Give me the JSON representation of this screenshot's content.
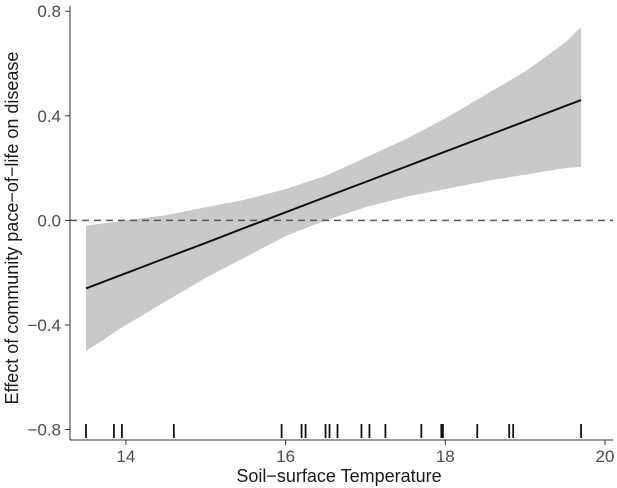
{
  "chart_data": {
    "type": "line",
    "title": "",
    "xlabel": "Soil−surface Temperature",
    "ylabel": "Effect of community pace−of−life on disease",
    "xlim": [
      13.3,
      20.1
    ],
    "ylim": [
      -0.84,
      0.82
    ],
    "x_ticks": [
      14,
      16,
      18,
      20
    ],
    "x_tick_labels": [
      "14",
      "16",
      "18",
      "20"
    ],
    "y_ticks": [
      0.8,
      0.4,
      0.0,
      -0.4,
      -0.8
    ],
    "y_tick_labels": [
      "0.8",
      "0.4",
      "0.0",
      "−0.4",
      "−0.8"
    ],
    "grid": false,
    "reference_line": {
      "y": 0.0,
      "style": "dashed",
      "color": "#555555"
    },
    "line_color": "#111111",
    "band_color": "#c8cac8",
    "series": [
      {
        "x": [
          13.5,
          14.0,
          14.5,
          15.0,
          15.5,
          16.0,
          16.5,
          17.0,
          17.5,
          18.0,
          18.5,
          19.0,
          19.5,
          19.7
        ],
        "y": [
          -0.26,
          -0.202,
          -0.144,
          -0.086,
          -0.027,
          0.031,
          0.089,
          0.147,
          0.205,
          0.263,
          0.321,
          0.379,
          0.437,
          0.46
        ],
        "lower": [
          -0.5,
          -0.4,
          -0.31,
          -0.22,
          -0.14,
          -0.06,
          0.0,
          0.05,
          0.09,
          0.12,
          0.15,
          0.175,
          0.2,
          0.205
        ],
        "upper": [
          -0.02,
          0.0,
          0.02,
          0.05,
          0.08,
          0.12,
          0.17,
          0.24,
          0.31,
          0.39,
          0.48,
          0.57,
          0.68,
          0.74
        ]
      }
    ],
    "rug": [
      13.5,
      13.85,
      13.95,
      14.6,
      15.95,
      16.2,
      16.25,
      16.5,
      16.55,
      16.65,
      16.95,
      17.05,
      17.25,
      17.7,
      17.95,
      17.97,
      18.4,
      18.8,
      18.85,
      19.7
    ]
  }
}
